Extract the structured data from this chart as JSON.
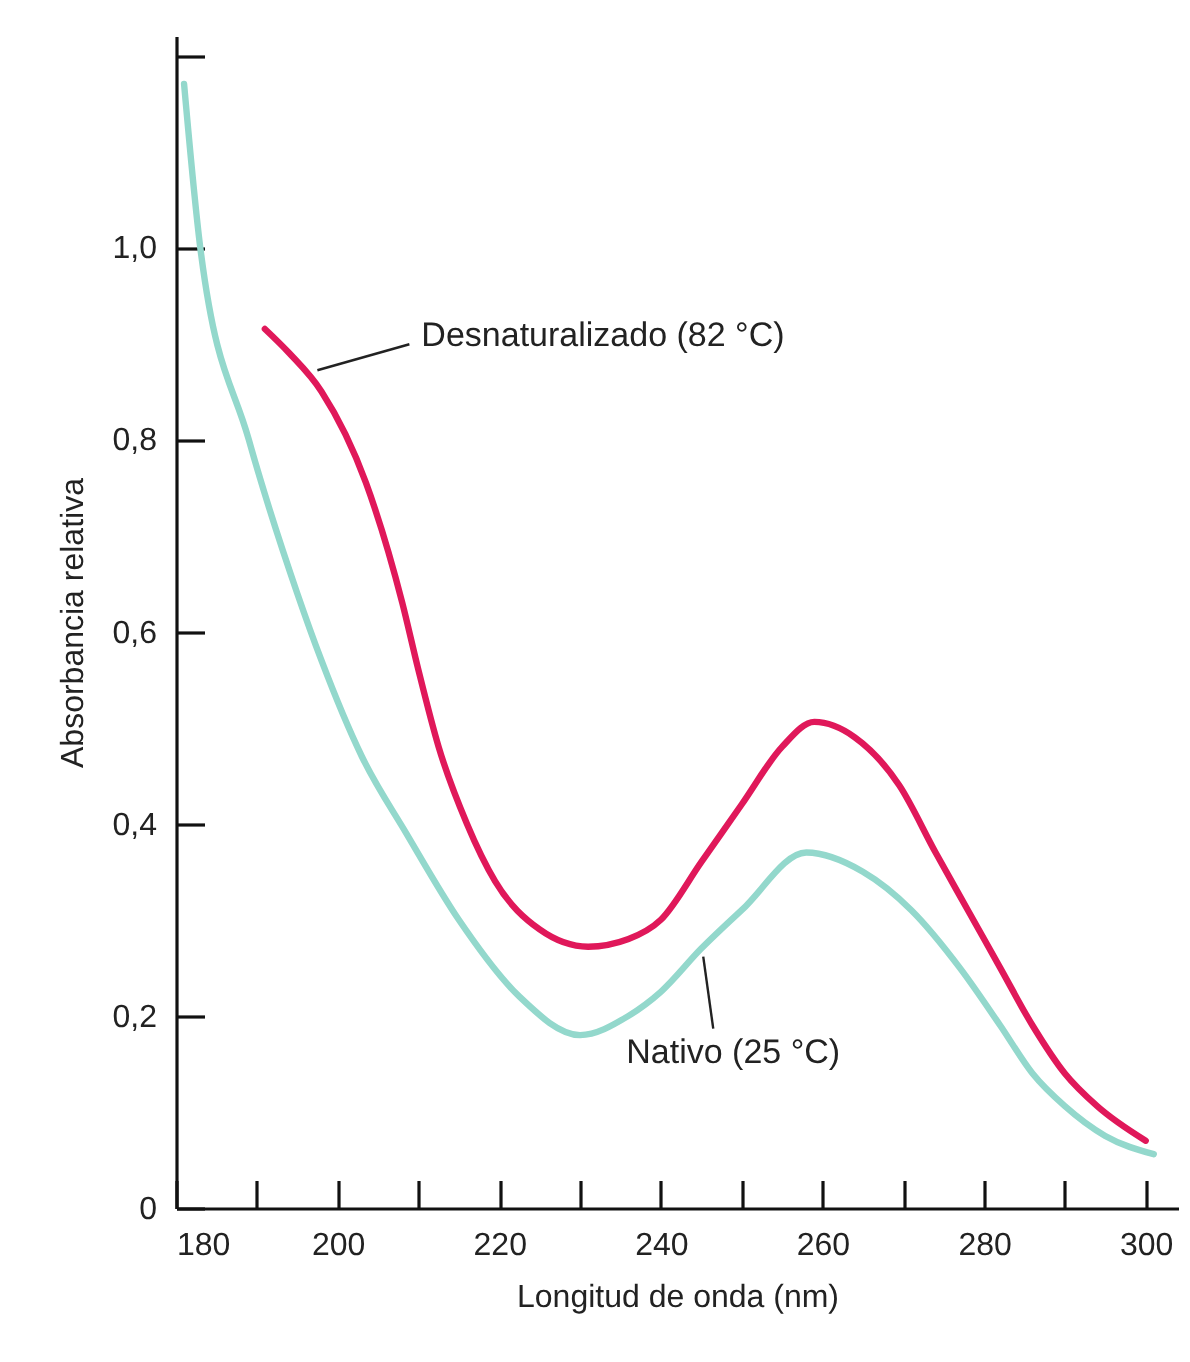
{
  "chart_data": {
    "type": "line",
    "xlabel": "Longitud de onda (nm)",
    "ylabel": "Absorbancia relativa",
    "xlim": [
      180,
      304
    ],
    "ylim": [
      0,
      1.22
    ],
    "xticks": [
      180,
      {
        "value": 190,
        "label": null
      },
      200,
      {
        "value": 210,
        "label": null
      },
      220,
      {
        "value": 230,
        "label": null
      },
      240,
      {
        "value": 250,
        "label": null
      },
      260,
      {
        "value": 270,
        "label": null
      },
      280,
      {
        "value": 290,
        "label": null
      },
      300
    ],
    "yticks": [
      0,
      {
        "value": 0.2,
        "label": "0,2"
      },
      {
        "value": 0.4,
        "label": "0,4"
      },
      {
        "value": 0.6,
        "label": "0,6"
      },
      {
        "value": 0.8,
        "label": "0,8"
      },
      {
        "value": 1,
        "label": "1,0"
      },
      {
        "value": 1.2,
        "label": null
      }
    ],
    "grid": false,
    "line_style": "solid",
    "marker": "none",
    "series": [
      {
        "color": "#e0185a",
        "x": [
          191,
          194,
          198,
          203.5,
          208,
          210,
          212.5,
          216,
          219.5,
          225,
          231,
          236,
          240,
          245,
          250,
          255,
          259,
          264,
          269.5,
          274,
          278,
          282,
          286,
          290,
          294,
          300
        ],
        "values": [
          0.915,
          0.89,
          0.85,
          0.755,
          0.63,
          0.56,
          0.48,
          0.4,
          0.34,
          0.29,
          0.272,
          0.28,
          0.3,
          0.36,
          0.42,
          0.48,
          0.506,
          0.49,
          0.44,
          0.37,
          0.31,
          0.25,
          0.19,
          0.14,
          0.106,
          0.07
        ]
      },
      {
        "color": "#93d8cc",
        "x": [
          181,
          183,
          189,
          195,
          198,
          203,
          208.5,
          215,
          222.5,
          230,
          236,
          240,
          245,
          250,
          258,
          265,
          271,
          277,
          282,
          286,
          290,
          295,
          301
        ],
        "values": [
          1.17,
          1.0,
          0.8,
          0.64,
          0.57,
          0.47,
          0.39,
          0.3,
          0.22,
          0.18,
          0.2,
          0.225,
          0.27,
          0.31,
          0.37,
          0.35,
          0.31,
          0.25,
          0.19,
          0.14,
          0.106,
          0.075,
          0.056
        ]
      }
    ],
    "annotations": [
      {
        "text": "Desnaturalizado (82 °C)",
        "x": 197,
        "y": 0.87
      },
      {
        "text": "Nativo (25 °C)",
        "x": 245,
        "y": 0.27
      }
    ]
  }
}
